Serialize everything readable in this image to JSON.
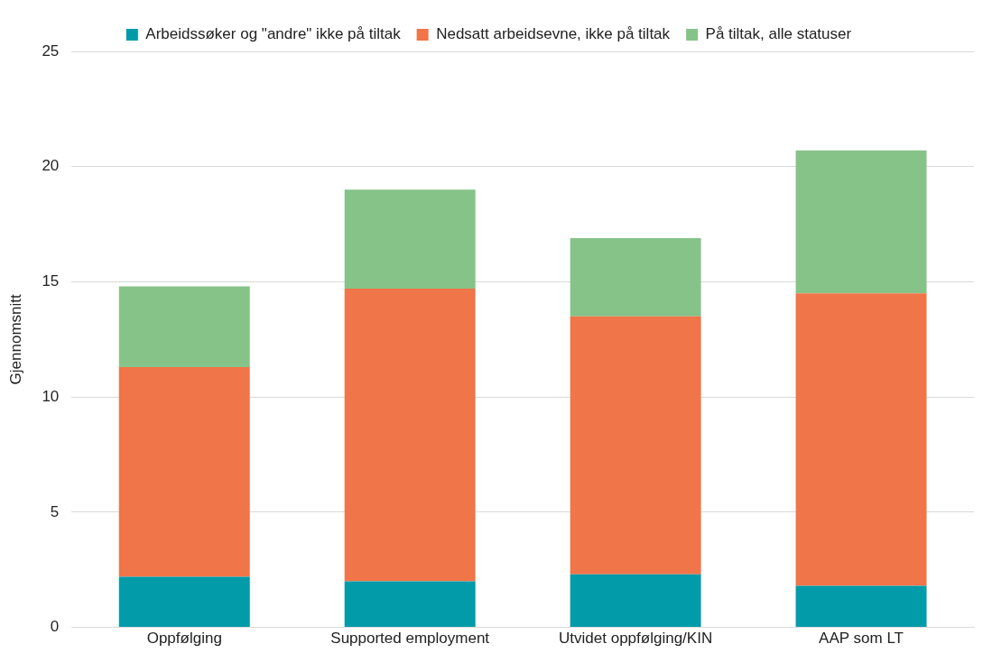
{
  "chart_data": {
    "type": "bar",
    "stacked": true,
    "ylabel": "Gjennomsnitt",
    "categories": [
      "Oppfølging",
      "Supported employment",
      "Utvidet oppfølging/KIN",
      "AAP som LT"
    ],
    "series": [
      {
        "name": "Arbeidssøker og \"andre\" ikke på tiltak",
        "color": "#019ba9",
        "values": [
          2.2,
          2.0,
          2.3,
          1.8
        ]
      },
      {
        "name": "Nedsatt arbeidsevne, ikke på tiltak",
        "color": "#f07548",
        "values": [
          9.1,
          12.7,
          11.2,
          12.7
        ]
      },
      {
        "name": "På tiltak, alle statuser",
        "color": "#86c388",
        "values": [
          3.5,
          4.3,
          3.4,
          6.2
        ]
      }
    ],
    "ylim": [
      0,
      25
    ],
    "yticks": [
      0,
      5,
      10,
      15,
      20,
      25
    ],
    "grid": "y",
    "legend": "top"
  }
}
